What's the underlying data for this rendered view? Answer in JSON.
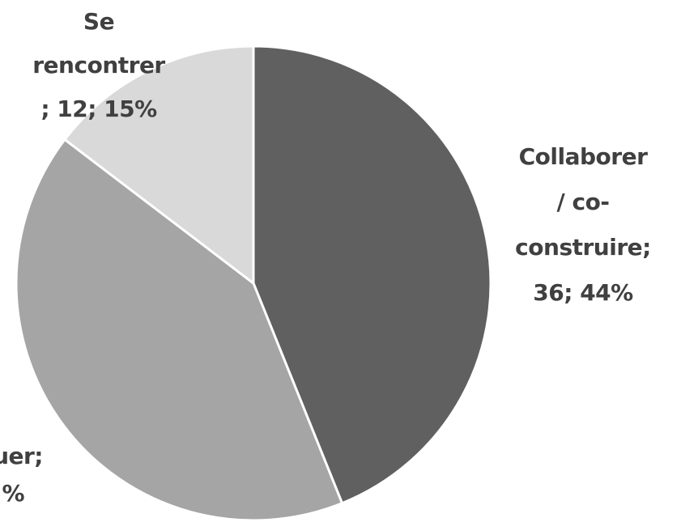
{
  "chart_data": {
    "type": "pie",
    "values": [
      36,
      34,
      12
    ],
    "colors": [
      "#606060",
      "#a5a5a5",
      "#d9d9d9"
    ],
    "labels": [
      [
        "Collaborer",
        "/ co-",
        "construire;",
        "36; 44%"
      ],
      [
        "uer;",
        "%"
      ],
      [
        "Se",
        "rencontrer",
        "; 12; 15%"
      ]
    ]
  }
}
